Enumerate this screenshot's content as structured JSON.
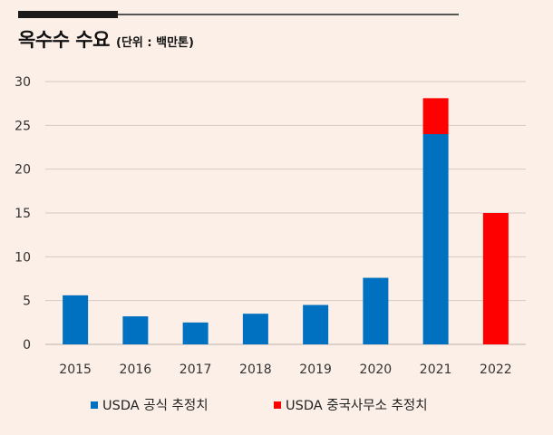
{
  "header": {
    "title": "옥수수 수요",
    "unit": "(단위 : 백만톤)"
  },
  "chart_data": {
    "type": "bar",
    "stacked": true,
    "title": "옥수수 수요",
    "unit": "(단위 : 백만톤)",
    "categories": [
      "2015",
      "2016",
      "2017",
      "2018",
      "2019",
      "2020",
      "2021",
      "2022"
    ],
    "series": [
      {
        "name": "USDA 공식 추정치",
        "color": "#0070c0",
        "values": [
          5.6,
          3.2,
          2.5,
          3.5,
          4.5,
          7.6,
          24,
          0
        ]
      },
      {
        "name": "USDA 중국사무소 추정치",
        "color": "#ff0000",
        "values": [
          0,
          0,
          0,
          0,
          0,
          0,
          4.1,
          15
        ]
      }
    ],
    "ylim": [
      0,
      30
    ],
    "yticks": [
      0,
      5,
      10,
      15,
      20,
      25,
      30
    ],
    "grid": true,
    "grid_color": "#d4cac4",
    "legend": "bottom"
  }
}
